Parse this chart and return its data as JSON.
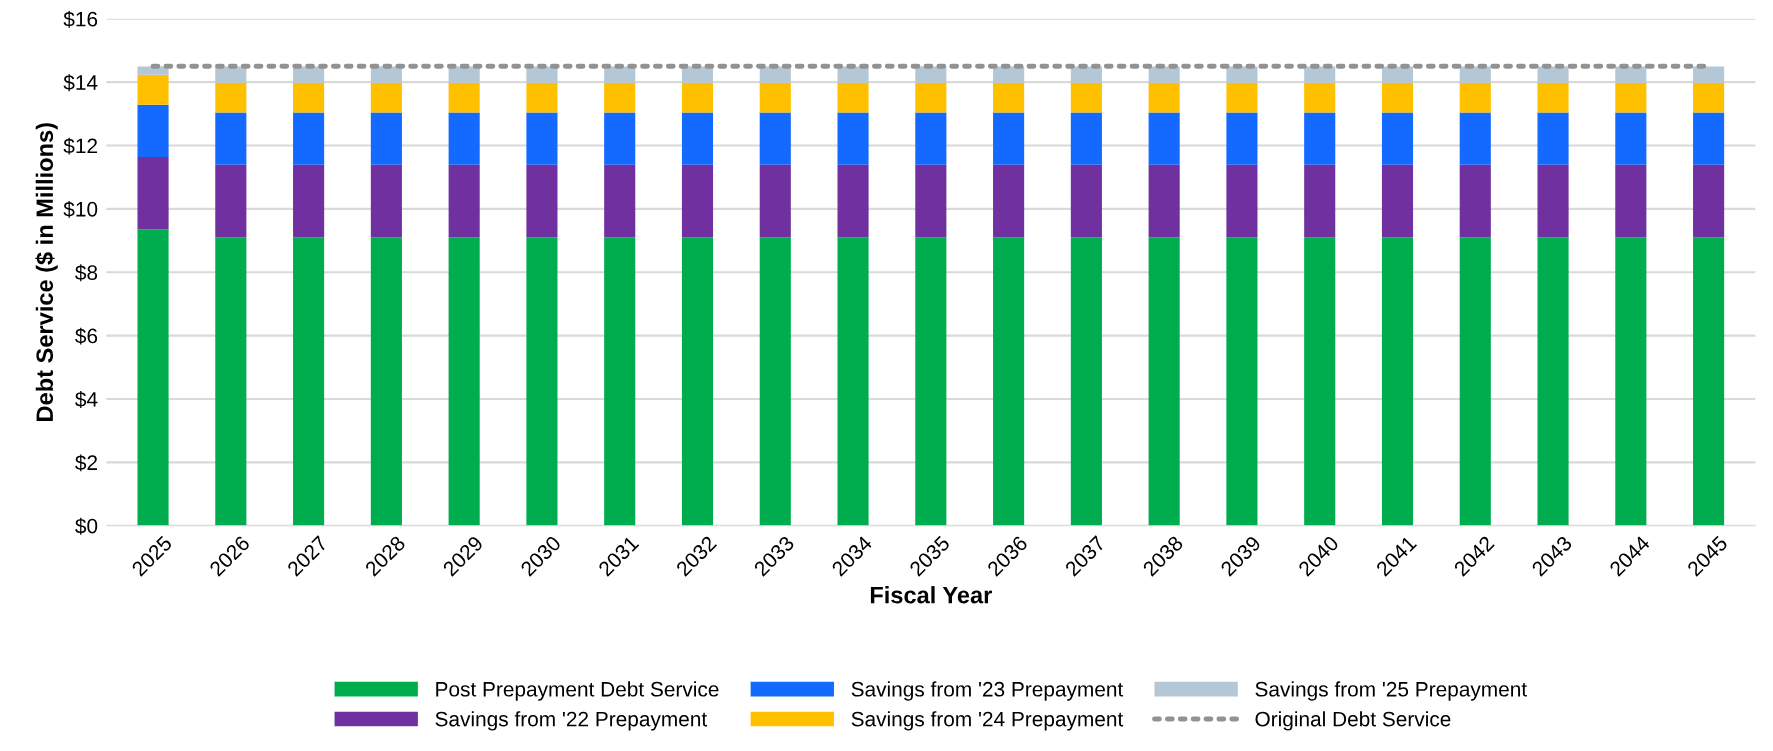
{
  "chart_data": {
    "type": "bar",
    "stacked": true,
    "xlabel": "Fiscal Year",
    "ylabel": "Debt Service ($ in Millions)",
    "categories": [
      "2025",
      "2026",
      "2027",
      "2028",
      "2029",
      "2030",
      "2031",
      "2032",
      "2033",
      "2034",
      "2035",
      "2036",
      "2037",
      "2038",
      "2039",
      "2040",
      "2041",
      "2042",
      "2043",
      "2044",
      "2045"
    ],
    "ylim": [
      0,
      16
    ],
    "yticks": [
      {
        "value": 0,
        "label": "$0"
      },
      {
        "value": 2,
        "label": "$2"
      },
      {
        "value": 4,
        "label": "$4"
      },
      {
        "value": 6,
        "label": "$6"
      },
      {
        "value": 8,
        "label": "$8"
      },
      {
        "value": 10,
        "label": "$10"
      },
      {
        "value": 12,
        "label": "$12"
      },
      {
        "value": 14,
        "label": "$14"
      },
      {
        "value": 16,
        "label": "$16"
      }
    ],
    "grid": "y",
    "legend": "bottom",
    "series": [
      {
        "name": "Post Prepayment Debt Service",
        "color": "#00ad4e",
        "values": [
          9.35,
          9.1,
          9.1,
          9.1,
          9.1,
          9.1,
          9.1,
          9.1,
          9.1,
          9.1,
          9.1,
          9.1,
          9.1,
          9.1,
          9.1,
          9.1,
          9.1,
          9.1,
          9.1,
          9.1,
          9.1
        ]
      },
      {
        "name": "Savings from '22 Prepayment",
        "color": "#7030a0",
        "values": [
          2.29,
          2.29,
          2.29,
          2.29,
          2.29,
          2.29,
          2.29,
          2.29,
          2.29,
          2.29,
          2.29,
          2.29,
          2.29,
          2.29,
          2.29,
          2.29,
          2.29,
          2.29,
          2.29,
          2.29,
          2.29
        ]
      },
      {
        "name": "Savings from '23 Prepayment",
        "color": "#1469ff",
        "values": [
          1.65,
          1.65,
          1.65,
          1.65,
          1.65,
          1.65,
          1.65,
          1.65,
          1.65,
          1.65,
          1.65,
          1.65,
          1.65,
          1.65,
          1.65,
          1.65,
          1.65,
          1.65,
          1.65,
          1.65,
          1.65
        ]
      },
      {
        "name": "Savings from '24 Prepayment",
        "color": "#ffc000",
        "values": [
          0.94,
          0.94,
          0.94,
          0.94,
          0.94,
          0.94,
          0.94,
          0.94,
          0.94,
          0.94,
          0.94,
          0.94,
          0.94,
          0.94,
          0.94,
          0.94,
          0.94,
          0.94,
          0.94,
          0.94,
          0.94
        ]
      },
      {
        "name": "Savings from '25 Prepayment",
        "color": "#b4c7d7",
        "values": [
          0.26,
          0.51,
          0.51,
          0.51,
          0.51,
          0.51,
          0.51,
          0.51,
          0.51,
          0.51,
          0.51,
          0.51,
          0.51,
          0.51,
          0.51,
          0.51,
          0.51,
          0.51,
          0.51,
          0.51,
          0.51
        ]
      },
      {
        "name": "Original Debt Service",
        "type": "line",
        "line_style": "dotted",
        "marker": "none",
        "color": "#929292",
        "values": [
          14.5,
          14.5,
          14.5,
          14.5,
          14.5,
          14.5,
          14.5,
          14.5,
          14.5,
          14.5,
          14.5,
          14.5,
          14.5,
          14.5,
          14.5,
          14.5,
          14.5,
          14.5,
          14.5,
          14.5,
          14.5
        ]
      }
    ]
  }
}
